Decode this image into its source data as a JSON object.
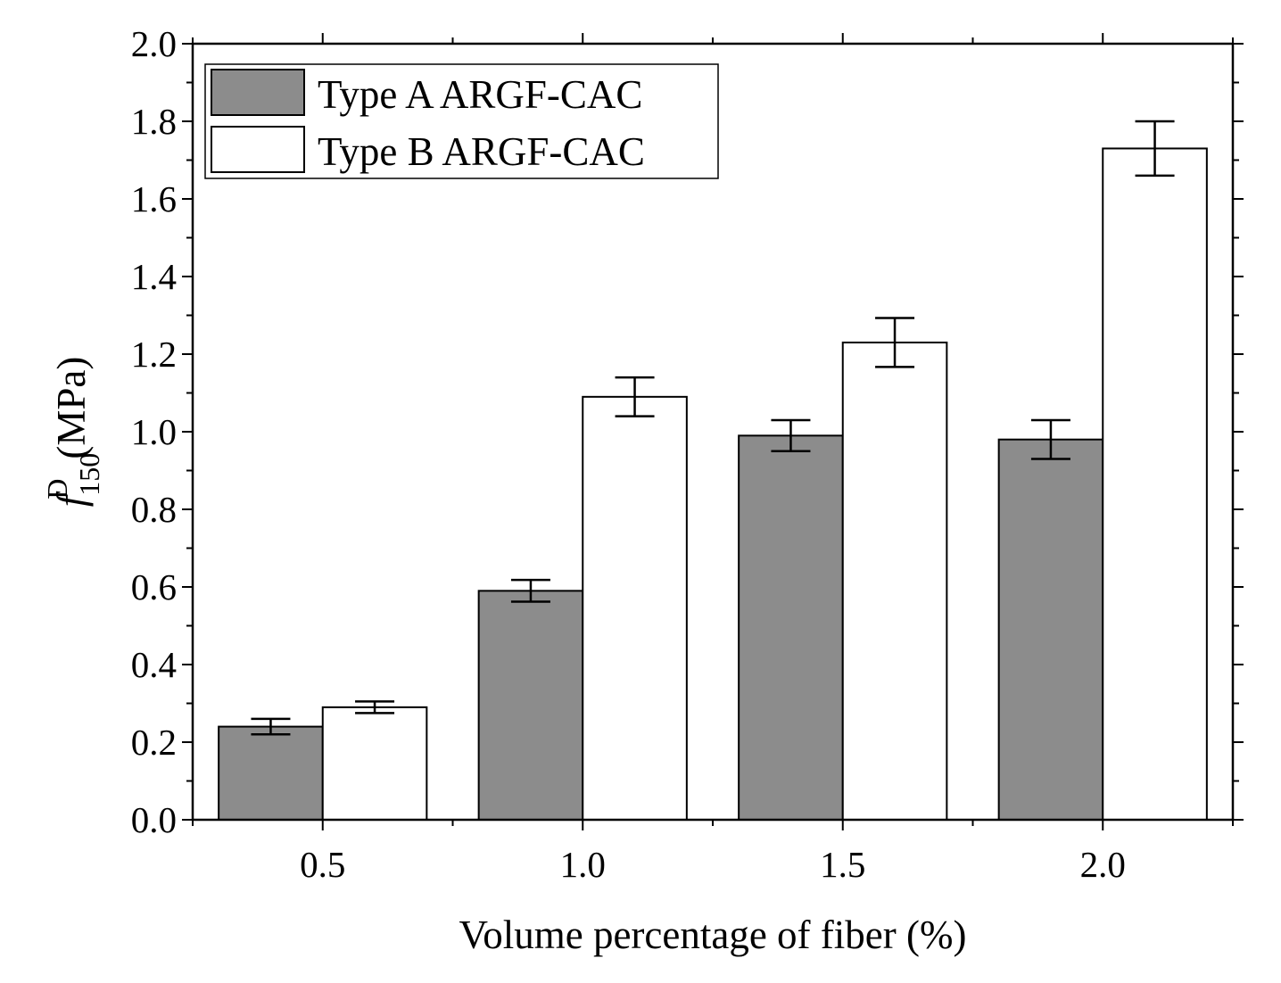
{
  "chart_data": {
    "type": "bar",
    "categories": [
      "0.5",
      "1.0",
      "1.5",
      "2.0"
    ],
    "x_values": [
      0.5,
      1.0,
      1.5,
      2.0
    ],
    "series": [
      {
        "name": "Type A ARGF-CAC",
        "fill": "#8c8c8c",
        "values": [
          0.24,
          0.59,
          0.99,
          0.98
        ],
        "errors": [
          0.02,
          0.028,
          0.04,
          0.05
        ]
      },
      {
        "name": "Type B ARGF-CAC",
        "fill": "#ffffff",
        "values": [
          0.29,
          1.09,
          1.23,
          1.73
        ],
        "errors": [
          0.015,
          0.05,
          0.063,
          0.07
        ]
      }
    ],
    "xlabel": "Volume percentage of fiber (%)",
    "ylabel": {
      "symbol": "f",
      "subscript": "150",
      "superscript": "D",
      "unit": "(MPa)"
    },
    "xlim": [
      0.25,
      2.25
    ],
    "ylim": [
      0.0,
      2.0
    ],
    "yticks": [
      "0.0",
      "0.2",
      "0.4",
      "0.6",
      "0.8",
      "1.0",
      "1.2",
      "1.4",
      "1.6",
      "1.8",
      "2.0"
    ],
    "ytick_values": [
      0.0,
      0.2,
      0.4,
      0.6,
      0.8,
      1.0,
      1.2,
      1.4,
      1.6,
      1.8,
      2.0
    ],
    "bar_width": 0.2,
    "grid": false,
    "legend": "top-left"
  }
}
